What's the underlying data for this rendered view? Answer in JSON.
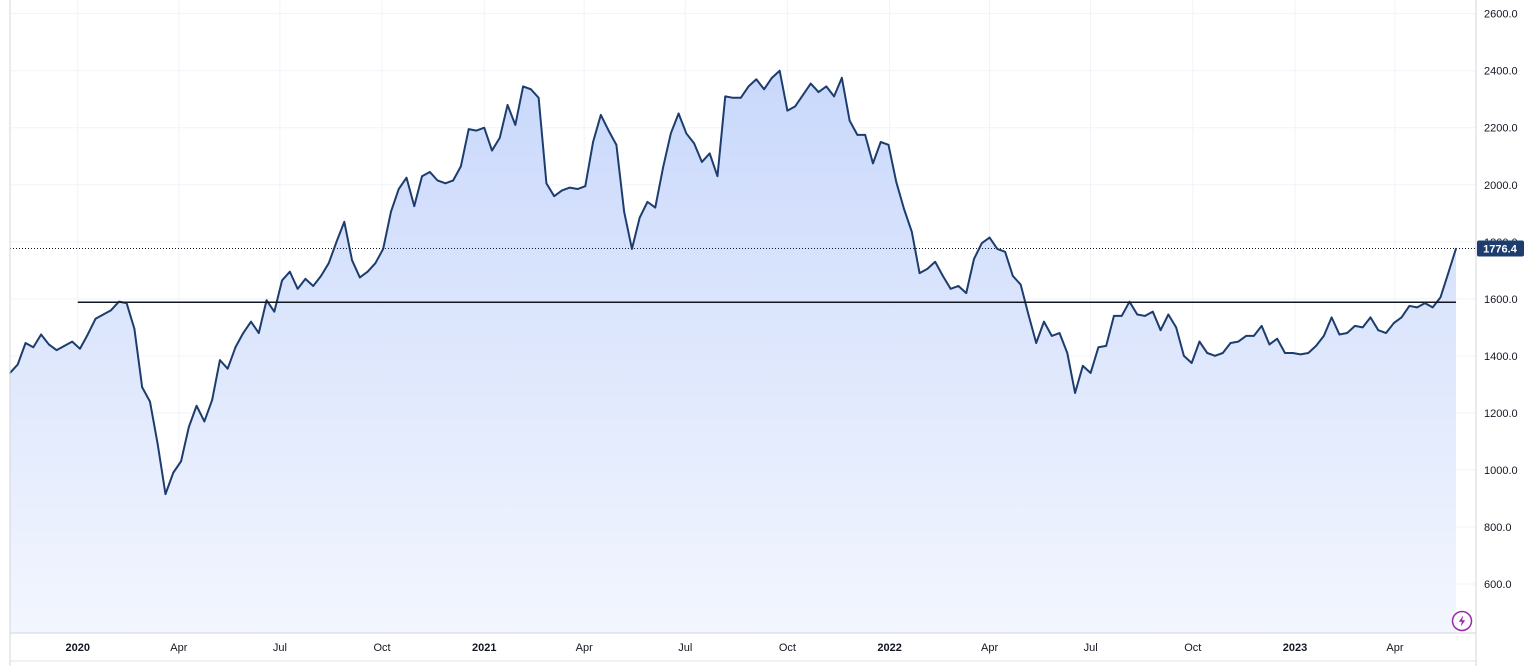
{
  "chart_data": {
    "type": "area",
    "series": [
      {
        "values": [
          [
            "2019-11-01",
            1340
          ],
          [
            "2019-11-08",
            1370
          ],
          [
            "2019-11-15",
            1445
          ],
          [
            "2019-11-22",
            1430
          ],
          [
            "2019-11-29",
            1475
          ],
          [
            "2019-12-06",
            1440
          ],
          [
            "2019-12-13",
            1420
          ],
          [
            "2019-12-20",
            1435
          ],
          [
            "2019-12-27",
            1450
          ],
          [
            "2020-01-03",
            1425
          ],
          [
            "2020-01-10",
            1475
          ],
          [
            "2020-01-17",
            1530
          ],
          [
            "2020-01-24",
            1545
          ],
          [
            "2020-01-31",
            1560
          ],
          [
            "2020-02-07",
            1590
          ],
          [
            "2020-02-14",
            1585
          ],
          [
            "2020-02-21",
            1495
          ],
          [
            "2020-02-28",
            1290
          ],
          [
            "2020-03-06",
            1240
          ],
          [
            "2020-03-13",
            1090
          ],
          [
            "2020-03-20",
            915
          ],
          [
            "2020-03-27",
            990
          ],
          [
            "2020-04-03",
            1030
          ],
          [
            "2020-04-10",
            1150
          ],
          [
            "2020-04-17",
            1225
          ],
          [
            "2020-04-24",
            1170
          ],
          [
            "2020-05-01",
            1245
          ],
          [
            "2020-05-08",
            1385
          ],
          [
            "2020-05-15",
            1355
          ],
          [
            "2020-05-22",
            1430
          ],
          [
            "2020-05-29",
            1480
          ],
          [
            "2020-06-05",
            1520
          ],
          [
            "2020-06-12",
            1480
          ],
          [
            "2020-06-19",
            1595
          ],
          [
            "2020-06-26",
            1555
          ],
          [
            "2020-07-03",
            1665
          ],
          [
            "2020-07-10",
            1695
          ],
          [
            "2020-07-17",
            1635
          ],
          [
            "2020-07-24",
            1670
          ],
          [
            "2020-07-31",
            1645
          ],
          [
            "2020-08-07",
            1680
          ],
          [
            "2020-08-14",
            1725
          ],
          [
            "2020-08-21",
            1800
          ],
          [
            "2020-08-28",
            1870
          ],
          [
            "2020-09-04",
            1735
          ],
          [
            "2020-09-11",
            1675
          ],
          [
            "2020-09-18",
            1695
          ],
          [
            "2020-09-25",
            1725
          ],
          [
            "2020-10-02",
            1775
          ],
          [
            "2020-10-09",
            1905
          ],
          [
            "2020-10-16",
            1985
          ],
          [
            "2020-10-23",
            2025
          ],
          [
            "2020-10-30",
            1925
          ],
          [
            "2020-11-06",
            2030
          ],
          [
            "2020-11-13",
            2045
          ],
          [
            "2020-11-20",
            2015
          ],
          [
            "2020-11-27",
            2005
          ],
          [
            "2020-12-04",
            2015
          ],
          [
            "2020-12-11",
            2065
          ],
          [
            "2020-12-18",
            2195
          ],
          [
            "2020-12-25",
            2190
          ],
          [
            "2021-01-01",
            2200
          ],
          [
            "2021-01-08",
            2120
          ],
          [
            "2021-01-15",
            2165
          ],
          [
            "2021-01-22",
            2280
          ],
          [
            "2021-01-29",
            2210
          ],
          [
            "2021-02-05",
            2345
          ],
          [
            "2021-02-12",
            2335
          ],
          [
            "2021-02-19",
            2305
          ],
          [
            "2021-02-26",
            2005
          ],
          [
            "2021-03-05",
            1960
          ],
          [
            "2021-03-12",
            1980
          ],
          [
            "2021-03-19",
            1990
          ],
          [
            "2021-03-26",
            1985
          ],
          [
            "2021-04-02",
            1995
          ],
          [
            "2021-04-09",
            2150
          ],
          [
            "2021-04-16",
            2245
          ],
          [
            "2021-04-23",
            2190
          ],
          [
            "2021-04-30",
            2140
          ],
          [
            "2021-05-07",
            1905
          ],
          [
            "2021-05-14",
            1775
          ],
          [
            "2021-05-21",
            1885
          ],
          [
            "2021-05-28",
            1940
          ],
          [
            "2021-06-04",
            1920
          ],
          [
            "2021-06-11",
            2060
          ],
          [
            "2021-06-18",
            2180
          ],
          [
            "2021-06-25",
            2250
          ],
          [
            "2021-07-02",
            2180
          ],
          [
            "2021-07-09",
            2145
          ],
          [
            "2021-07-16",
            2080
          ],
          [
            "2021-07-23",
            2110
          ],
          [
            "2021-07-30",
            2030
          ],
          [
            "2021-08-06",
            2310
          ],
          [
            "2021-08-13",
            2305
          ],
          [
            "2021-08-20",
            2305
          ],
          [
            "2021-08-27",
            2345
          ],
          [
            "2021-09-03",
            2370
          ],
          [
            "2021-09-10",
            2335
          ],
          [
            "2021-09-17",
            2375
          ],
          [
            "2021-09-24",
            2400
          ],
          [
            "2021-10-01",
            2260
          ],
          [
            "2021-10-08",
            2275
          ],
          [
            "2021-10-15",
            2315
          ],
          [
            "2021-10-22",
            2355
          ],
          [
            "2021-10-29",
            2325
          ],
          [
            "2021-11-05",
            2345
          ],
          [
            "2021-11-12",
            2310
          ],
          [
            "2021-11-19",
            2375
          ],
          [
            "2021-11-26",
            2225
          ],
          [
            "2021-12-03",
            2175
          ],
          [
            "2021-12-10",
            2175
          ],
          [
            "2021-12-17",
            2075
          ],
          [
            "2021-12-24",
            2150
          ],
          [
            "2021-12-31",
            2140
          ],
          [
            "2022-01-07",
            2010
          ],
          [
            "2022-01-14",
            1915
          ],
          [
            "2022-01-21",
            1835
          ],
          [
            "2022-01-28",
            1690
          ],
          [
            "2022-02-04",
            1705
          ],
          [
            "2022-02-11",
            1730
          ],
          [
            "2022-02-18",
            1680
          ],
          [
            "2022-02-25",
            1635
          ],
          [
            "2022-03-04",
            1645
          ],
          [
            "2022-03-11",
            1620
          ],
          [
            "2022-03-18",
            1740
          ],
          [
            "2022-03-25",
            1795
          ],
          [
            "2022-04-01",
            1815
          ],
          [
            "2022-04-08",
            1775
          ],
          [
            "2022-04-15",
            1765
          ],
          [
            "2022-04-22",
            1680
          ],
          [
            "2022-04-29",
            1650
          ],
          [
            "2022-05-06",
            1545
          ],
          [
            "2022-05-13",
            1445
          ],
          [
            "2022-05-20",
            1520
          ],
          [
            "2022-05-27",
            1470
          ],
          [
            "2022-06-03",
            1480
          ],
          [
            "2022-06-10",
            1410
          ],
          [
            "2022-06-17",
            1270
          ],
          [
            "2022-06-24",
            1365
          ],
          [
            "2022-07-01",
            1340
          ],
          [
            "2022-07-08",
            1430
          ],
          [
            "2022-07-15",
            1435
          ],
          [
            "2022-07-22",
            1540
          ],
          [
            "2022-07-29",
            1540
          ],
          [
            "2022-08-05",
            1590
          ],
          [
            "2022-08-12",
            1545
          ],
          [
            "2022-08-19",
            1540
          ],
          [
            "2022-08-26",
            1555
          ],
          [
            "2022-09-02",
            1490
          ],
          [
            "2022-09-09",
            1545
          ],
          [
            "2022-09-16",
            1500
          ],
          [
            "2022-09-23",
            1400
          ],
          [
            "2022-09-30",
            1375
          ],
          [
            "2022-10-07",
            1450
          ],
          [
            "2022-10-14",
            1410
          ],
          [
            "2022-10-21",
            1400
          ],
          [
            "2022-10-28",
            1410
          ],
          [
            "2022-11-04",
            1445
          ],
          [
            "2022-11-11",
            1450
          ],
          [
            "2022-11-18",
            1470
          ],
          [
            "2022-11-25",
            1470
          ],
          [
            "2022-12-02",
            1505
          ],
          [
            "2022-12-09",
            1440
          ],
          [
            "2022-12-16",
            1460
          ],
          [
            "2022-12-23",
            1410
          ],
          [
            "2022-12-30",
            1410
          ],
          [
            "2023-01-06",
            1405
          ],
          [
            "2023-01-13",
            1410
          ],
          [
            "2023-01-20",
            1435
          ],
          [
            "2023-01-27",
            1470
          ],
          [
            "2023-02-03",
            1535
          ],
          [
            "2023-02-10",
            1475
          ],
          [
            "2023-02-17",
            1480
          ],
          [
            "2023-02-24",
            1505
          ],
          [
            "2023-03-03",
            1500
          ],
          [
            "2023-03-10",
            1535
          ],
          [
            "2023-03-17",
            1490
          ],
          [
            "2023-03-24",
            1480
          ],
          [
            "2023-03-31",
            1515
          ],
          [
            "2023-04-07",
            1535
          ],
          [
            "2023-04-14",
            1575
          ],
          [
            "2023-04-21",
            1570
          ],
          [
            "2023-04-28",
            1585
          ],
          [
            "2023-05-05",
            1570
          ],
          [
            "2023-05-12",
            1605
          ],
          [
            "2023-05-19",
            1690
          ],
          [
            "2023-05-26",
            1776.4
          ]
        ],
        "color": "#1c3d6e"
      }
    ],
    "x_range": [
      "2019-11-01",
      "2023-06-13"
    ],
    "ylim": [
      428,
      2648
    ],
    "y_ticks": [
      "600.0",
      "800.0",
      "1000.0",
      "1200.0",
      "1400.0",
      "1600.0",
      "1800.0",
      "2000.0",
      "2200.0",
      "2400.0",
      "2600.0"
    ],
    "x_ticks": [
      {
        "date": "2020-01-01",
        "label": "2020",
        "year": true
      },
      {
        "date": "2020-04-01",
        "label": "Apr",
        "year": false
      },
      {
        "date": "2020-07-01",
        "label": "Jul",
        "year": false
      },
      {
        "date": "2020-10-01",
        "label": "Oct",
        "year": false
      },
      {
        "date": "2021-01-01",
        "label": "2021",
        "year": true
      },
      {
        "date": "2021-04-01",
        "label": "Apr",
        "year": false
      },
      {
        "date": "2021-07-01",
        "label": "Jul",
        "year": false
      },
      {
        "date": "2021-10-01",
        "label": "Oct",
        "year": false
      },
      {
        "date": "2022-01-01",
        "label": "2022",
        "year": true
      },
      {
        "date": "2022-04-01",
        "label": "Apr",
        "year": false
      },
      {
        "date": "2022-07-01",
        "label": "Jul",
        "year": false
      },
      {
        "date": "2022-10-01",
        "label": "Oct",
        "year": false
      },
      {
        "date": "2023-01-01",
        "label": "2023",
        "year": true
      },
      {
        "date": "2023-04-01",
        "label": "Apr",
        "year": false
      }
    ],
    "last_value": 1776.4,
    "last_value_label": "1776.4",
    "horizontal_line": {
      "value": 1588,
      "from_date": "2020-01-01",
      "to_date": "2023-05-26",
      "color": "#131722"
    },
    "grid": true,
    "colors": {
      "line": "#1c3d6e",
      "fill_top": "#c9d8fb",
      "fill_bottom": "#f3f6fe",
      "badge": "#1c3d6e",
      "grid": "#f0f3fa"
    },
    "icons": {
      "bottom_right": "lightning-icon"
    }
  }
}
